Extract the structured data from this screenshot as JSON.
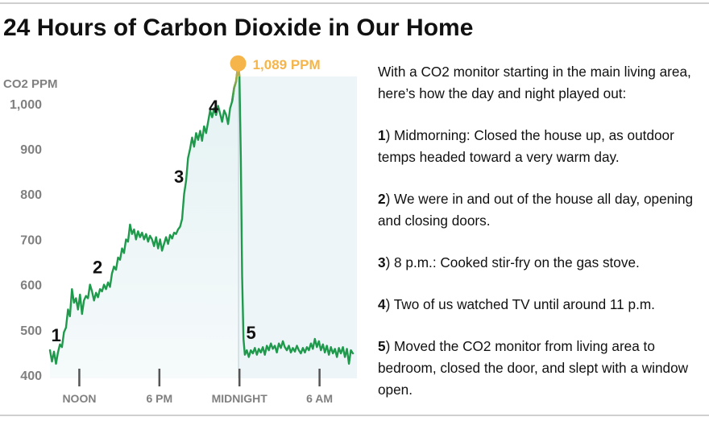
{
  "title": "24 Hours of Carbon Dioxide in Our Home",
  "notes": {
    "intro": "With a CO2 monitor starting in the main living area, here’s how the day and night played out:",
    "items": [
      {
        "num": "1",
        "text": ") Midmorning: Closed the house up, as outdoor temps headed toward a very warm day."
      },
      {
        "num": "2",
        "text": ") We were in and out of the house all day, opening and closing doors."
      },
      {
        "num": "3",
        "text": ") 8 p.m.: Cooked stir-fry on the gas stove."
      },
      {
        "num": "4",
        "text": ") Two of us watched TV until around 11 p.m."
      },
      {
        "num": "5",
        "text": ") Moved the CO2 monitor from living area to bedroom, closed the door, and slept with a window open."
      }
    ]
  },
  "colors": {
    "line": "#1f9a4c",
    "peak": "#f5b54a",
    "fill": "#e4f1f3",
    "night_bg": "#eef5f8",
    "axis_text": "#808080"
  },
  "chart_data": {
    "type": "line",
    "title": "24 Hours of Carbon Dioxide in Our Home",
    "ylabel": "CO2 PPM",
    "xlabel": "",
    "ylim": [
      400,
      1089
    ],
    "yticks": [
      400,
      500,
      600,
      700,
      800,
      900,
      1000
    ],
    "ytick_labels": [
      "400",
      "500",
      "600",
      "700",
      "800",
      "900",
      "1,000"
    ],
    "x_unit": "hours since start of recording",
    "xlim": [
      0,
      23
    ],
    "xticks": [
      {
        "x": 2.2,
        "label": "NOON"
      },
      {
        "x": 8.2,
        "label": "6 PM"
      },
      {
        "x": 14.2,
        "label": "MIDNIGHT"
      },
      {
        "x": 20.2,
        "label": "6 AM"
      }
    ],
    "peak": {
      "x": 14.1,
      "y": 1089,
      "label": "1,089 PPM"
    },
    "annotations": [
      {
        "label": "1",
        "x": 0.1,
        "y": 475
      },
      {
        "label": "2",
        "x": 3.2,
        "y": 625
      },
      {
        "label": "3",
        "x": 9.3,
        "y": 825
      },
      {
        "label": "4",
        "x": 11.9,
        "y": 980
      },
      {
        "label": "5",
        "x": 14.7,
        "y": 480
      }
    ],
    "series": [
      {
        "name": "",
        "points": [
          [
            0,
            455
          ],
          [
            0.15,
            430
          ],
          [
            0.3,
            452
          ],
          [
            0.45,
            425
          ],
          [
            0.6,
            450
          ],
          [
            0.75,
            468
          ],
          [
            0.9,
            462
          ],
          [
            1.05,
            495
          ],
          [
            1.2,
            505
          ],
          [
            1.35,
            545
          ],
          [
            1.5,
            530
          ],
          [
            1.65,
            590
          ],
          [
            1.8,
            560
          ],
          [
            1.95,
            570
          ],
          [
            2.1,
            545
          ],
          [
            2.25,
            578
          ],
          [
            2.4,
            535
          ],
          [
            2.55,
            565
          ],
          [
            2.7,
            575
          ],
          [
            2.85,
            570
          ],
          [
            3.0,
            600
          ],
          [
            3.15,
            585
          ],
          [
            3.3,
            565
          ],
          [
            3.45,
            582
          ],
          [
            3.6,
            572
          ],
          [
            3.75,
            590
          ],
          [
            3.9,
            585
          ],
          [
            4.05,
            600
          ],
          [
            4.2,
            590
          ],
          [
            4.35,
            605
          ],
          [
            4.5,
            595
          ],
          [
            4.65,
            625
          ],
          [
            4.8,
            640
          ],
          [
            4.95,
            633
          ],
          [
            5.1,
            660
          ],
          [
            5.25,
            655
          ],
          [
            5.4,
            680
          ],
          [
            5.55,
            670
          ],
          [
            5.7,
            700
          ],
          [
            5.85,
            695
          ],
          [
            6.0,
            733
          ],
          [
            6.15,
            712
          ],
          [
            6.3,
            722
          ],
          [
            6.45,
            700
          ],
          [
            6.6,
            718
          ],
          [
            6.75,
            705
          ],
          [
            6.9,
            715
          ],
          [
            7.05,
            700
          ],
          [
            7.2,
            712
          ],
          [
            7.35,
            695
          ],
          [
            7.5,
            708
          ],
          [
            7.65,
            700
          ],
          [
            7.8,
            685
          ],
          [
            7.95,
            705
          ],
          [
            8.1,
            680
          ],
          [
            8.25,
            700
          ],
          [
            8.4,
            675
          ],
          [
            8.55,
            690
          ],
          [
            8.7,
            705
          ],
          [
            8.85,
            690
          ],
          [
            9.0,
            710
          ],
          [
            9.15,
            702
          ],
          [
            9.3,
            715
          ],
          [
            9.45,
            712
          ],
          [
            9.6,
            722
          ],
          [
            9.75,
            728
          ],
          [
            9.9,
            745
          ],
          [
            10.05,
            800
          ],
          [
            10.2,
            830
          ],
          [
            10.35,
            880
          ],
          [
            10.5,
            900
          ],
          [
            10.65,
            925
          ],
          [
            10.8,
            905
          ],
          [
            10.95,
            935
          ],
          [
            11.1,
            920
          ],
          [
            11.25,
            940
          ],
          [
            11.4,
            918
          ],
          [
            11.55,
            950
          ],
          [
            11.7,
            935
          ],
          [
            11.85,
            960
          ],
          [
            12.0,
            985
          ],
          [
            12.15,
            970
          ],
          [
            12.3,
            990
          ],
          [
            12.45,
            975
          ],
          [
            12.6,
            995
          ],
          [
            12.75,
            978
          ],
          [
            12.9,
            960
          ],
          [
            13.05,
            985
          ],
          [
            13.2,
            975
          ],
          [
            13.35,
            955
          ],
          [
            13.5,
            990
          ],
          [
            13.65,
            1005
          ],
          [
            13.8,
            1035
          ],
          [
            13.95,
            1050
          ],
          [
            14.1,
            1089
          ],
          [
            14.2,
            1060
          ],
          [
            14.3,
            880
          ],
          [
            14.4,
            620
          ],
          [
            14.5,
            480
          ],
          [
            14.6,
            445
          ],
          [
            14.75,
            455
          ],
          [
            14.9,
            440
          ],
          [
            15.05,
            455
          ],
          [
            15.2,
            448
          ],
          [
            15.35,
            460
          ],
          [
            15.5,
            445
          ],
          [
            15.65,
            458
          ],
          [
            15.8,
            450
          ],
          [
            15.95,
            462
          ],
          [
            16.1,
            445
          ],
          [
            16.25,
            465
          ],
          [
            16.4,
            455
          ],
          [
            16.55,
            470
          ],
          [
            16.7,
            458
          ],
          [
            16.85,
            465
          ],
          [
            17.0,
            450
          ],
          [
            17.15,
            470
          ],
          [
            17.3,
            460
          ],
          [
            17.45,
            475
          ],
          [
            17.6,
            462
          ],
          [
            17.75,
            455
          ],
          [
            17.9,
            465
          ],
          [
            18.05,
            450
          ],
          [
            18.2,
            460
          ],
          [
            18.35,
            452
          ],
          [
            18.5,
            465
          ],
          [
            18.65,
            455
          ],
          [
            18.8,
            448
          ],
          [
            18.95,
            460
          ],
          [
            19.1,
            450
          ],
          [
            19.25,
            462
          ],
          [
            19.4,
            455
          ],
          [
            19.55,
            470
          ],
          [
            19.7,
            458
          ],
          [
            19.85,
            480
          ],
          [
            20.0,
            462
          ],
          [
            20.15,
            475
          ],
          [
            20.3,
            455
          ],
          [
            20.45,
            468
          ],
          [
            20.6,
            450
          ],
          [
            20.75,
            465
          ],
          [
            20.9,
            445
          ],
          [
            21.05,
            462
          ],
          [
            21.2,
            448
          ],
          [
            21.35,
            458
          ],
          [
            21.5,
            440
          ],
          [
            21.65,
            460
          ],
          [
            21.8,
            448
          ],
          [
            21.95,
            462
          ],
          [
            22.1,
            440
          ],
          [
            22.25,
            458
          ],
          [
            22.4,
            425
          ],
          [
            22.55,
            455
          ],
          [
            22.7,
            448
          ]
        ]
      }
    ]
  }
}
